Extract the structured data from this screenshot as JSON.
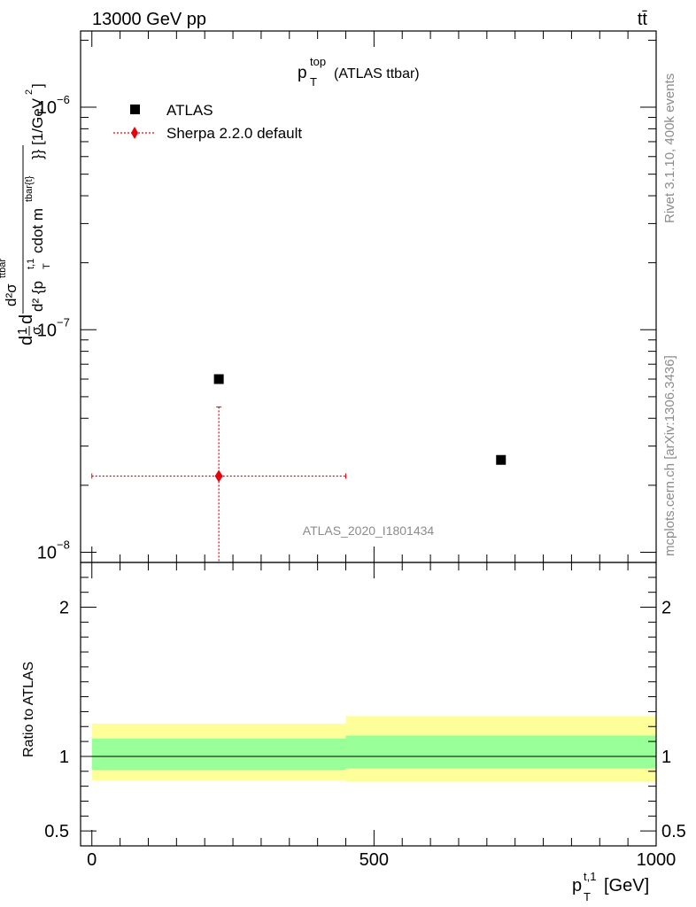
{
  "header": {
    "process": "13000 GeV pp",
    "final_state": "tt̄"
  },
  "side": {
    "rivet": "Rivet 3.1.10,  400k events",
    "mcplots": "mcplots.cern.ch [arXiv:1306.3436]"
  },
  "colors": {
    "data": "#000000",
    "mc": "#e8000b",
    "band_inner": "#99ff99",
    "band_outer": "#ffff99",
    "watermark": "#8c8c8c"
  },
  "chart_data": [
    {
      "type": "scatter",
      "panel": "main",
      "title": {
        "main": "p",
        "sup": "top",
        "sub": "T",
        "rest": "(ATLAS ttbar)"
      },
      "ylabel": "d1dσdd²σ^ttbar/d² {p_T^{t,1}cdot m^{tbar{t}}} [1/GeV²]",
      "ylabel_parts": {
        "left": "d",
        "one": "1",
        "sigma": "σ",
        "d": "d",
        "num": "d²σ",
        "num_sup": "ttbar",
        "den": "d² {p",
        "den_sup": "t,1",
        "den_sub": "T",
        "den_mid": "cdot m",
        "den_sup2": "tbar{t}",
        "den_end": "}} [1/GeV",
        "den_exp": "2",
        "den_close": "]"
      },
      "yscale": "log",
      "ylim": [
        9e-09,
        2.2e-06
      ],
      "xlim": [
        -20,
        1000
      ],
      "ytick_labels": [
        {
          "base": "10",
          "exp": "−8",
          "value": 1e-08
        },
        {
          "base": "10",
          "exp": "−7",
          "value": 1e-07
        },
        {
          "base": "10",
          "exp": "−6",
          "value": 1e-06
        }
      ],
      "legend": {
        "placement": "top-left",
        "entries": [
          "ATLAS",
          "Sherpa 2.2.0 default"
        ]
      },
      "series": [
        {
          "name": "ATLAS",
          "marker": "square",
          "x": [
            225,
            725
          ],
          "y": [
            6e-08,
            2.6e-08
          ]
        },
        {
          "name": "Sherpa 2.2.0 default",
          "marker": "diamond",
          "linestyle": "dotted",
          "x": [
            225
          ],
          "y": [
            2.2e-08
          ],
          "xerr_low": [
            225
          ],
          "xerr_high": [
            225
          ],
          "yerr_low_value": [
            9e-09
          ],
          "yerr_high_value": [
            4.5e-08
          ]
        }
      ],
      "watermark": "ATLAS_2020_I1801434"
    },
    {
      "type": "line",
      "panel": "ratio",
      "ylabel": "Ratio to ATLAS",
      "xlabel": {
        "main": "p",
        "sup": "t,1",
        "sub": "T",
        "rest": "[GeV]"
      },
      "ylim": [
        0.4,
        2.3
      ],
      "xlim": [
        -20,
        1000
      ],
      "xtick_labels": [
        "0",
        "500",
        "1000"
      ],
      "xticks": [
        0,
        500,
        1000
      ],
      "ytick_labels": [
        "0.5",
        "1",
        "2"
      ],
      "yticks": [
        0.5,
        1,
        2
      ],
      "bands": [
        {
          "x0": 0,
          "x1": 450,
          "inner": [
            0.91,
            1.12
          ],
          "outer": [
            0.84,
            1.22
          ]
        },
        {
          "x0": 450,
          "x1": 1000,
          "inner": [
            0.92,
            1.14
          ],
          "outer": [
            0.83,
            1.27
          ]
        }
      ],
      "reference": 1
    }
  ]
}
